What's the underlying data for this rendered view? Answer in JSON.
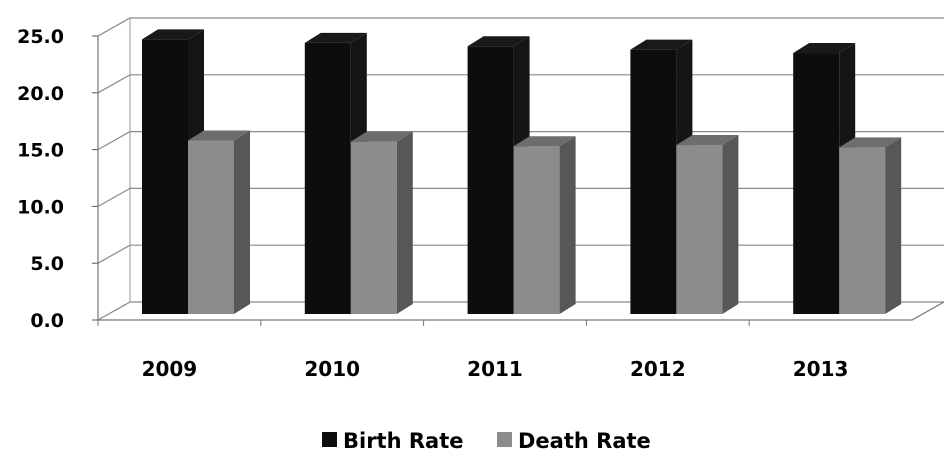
{
  "chart_data": {
    "type": "bar",
    "style": "3d-clustered-column",
    "categories": [
      "2009",
      "2010",
      "2011",
      "2012",
      "2013"
    ],
    "series": [
      {
        "name": "Birth Rate",
        "values": [
          24.7,
          24.4,
          24.1,
          23.8,
          23.5
        ],
        "color": "#0d0d0d"
      },
      {
        "name": "Death Rate",
        "values": [
          15.8,
          15.7,
          15.3,
          15.4,
          15.2
        ],
        "color": "#8c8c8c"
      }
    ],
    "y_ticks": [
      "0.0",
      "5.0",
      "10.0",
      "15.0",
      "20.0",
      "25.0"
    ],
    "ylim": [
      0,
      25
    ],
    "grid": true,
    "legend_position": "bottom",
    "title": "",
    "xlabel": "",
    "ylabel": ""
  }
}
